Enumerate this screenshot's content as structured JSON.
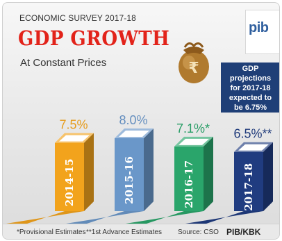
{
  "header": {
    "kicker": "ECONOMIC SURVEY 2017-18",
    "title": "GDP GROWTH",
    "subtitle": "At Constant Prices"
  },
  "logo": {
    "text": "pib"
  },
  "note": {
    "lines": [
      "GDP projections",
      "for 2017-18",
      "expected to",
      "be 6.75%"
    ]
  },
  "chart_data": {
    "type": "bar",
    "title": "GDP GROWTH",
    "subtitle": "At Constant Prices",
    "categories": [
      "2014-15",
      "2015-16",
      "2016-17",
      "2017-18"
    ],
    "values": [
      7.5,
      8.0,
      7.1,
      6.5
    ],
    "value_labels": [
      "7.5%",
      "8.0%",
      "7.1%*",
      "6.5%**"
    ],
    "colors": [
      "#f2a31c",
      "#6a97c9",
      "#2aa56b",
      "#203c80"
    ],
    "ylim": [
      0,
      8.0
    ],
    "grid": false,
    "legend": "none"
  },
  "footer": {
    "note1": "*Provisional Estimates",
    "note2": "**1st Advance Estimates",
    "source": "Source: CSO",
    "credit": "PIB/KBK"
  }
}
